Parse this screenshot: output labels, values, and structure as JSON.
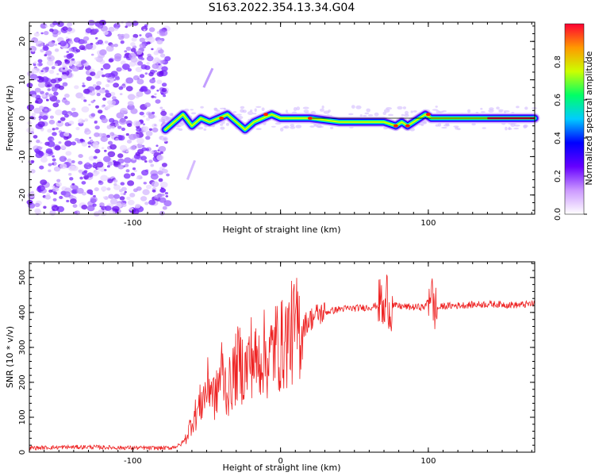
{
  "figure": {
    "title": "S163.2022.354.13.34.G04"
  },
  "chart_data": [
    {
      "type": "heatmap",
      "xlabel": "Height of straight line (km)",
      "ylabel": "Frequency (Hz)",
      "xlim": [
        -170,
        172
      ],
      "ylim": [
        -25,
        25
      ],
      "xticks": [
        -100,
        0,
        100
      ],
      "xtick_labels": [
        "-100",
        "",
        "100"
      ],
      "yticks": [
        -20,
        -10,
        0,
        10,
        20
      ],
      "colorbar": {
        "label": "Normalized spectral amplitude",
        "range": [
          0.0,
          1.0
        ],
        "ticks": [
          0.0,
          0.2,
          0.4,
          0.6,
          0.8
        ],
        "tick_labels": [
          "0.0",
          "0.2",
          "0.4",
          "0.6",
          "0.8"
        ],
        "colors": [
          "#ffffff",
          "#cc99ff",
          "#6600ff",
          "#0000ff",
          "#00ccff",
          "#00ff66",
          "#ccff00",
          "#ff9900",
          "#ff0033"
        ]
      },
      "ridge": {
        "description_points_x": [
          -78,
          -72,
          -66,
          -60,
          -54,
          -48,
          -42,
          -36,
          -30,
          -24,
          -18,
          -12,
          -6,
          0,
          20,
          40,
          60,
          70,
          78,
          82,
          86,
          90,
          94,
          98,
          102,
          120,
          140,
          172
        ],
        "description_points_y": [
          -3,
          -1,
          1,
          -2,
          0,
          -1,
          0,
          1,
          -1,
          -3,
          -1,
          0,
          1,
          0,
          0,
          -1,
          -1,
          -1,
          -2,
          -1,
          -2,
          -1,
          0,
          1,
          0,
          0,
          0,
          0
        ]
      }
    },
    {
      "type": "line",
      "xlabel": "Height of straight line (km)",
      "ylabel": "SNR (10 * v/v)",
      "xlim": [
        -170,
        172
      ],
      "ylim": [
        0,
        545
      ],
      "xticks": [
        -100,
        0,
        100
      ],
      "xtick_labels": [
        "-100",
        "0",
        "100"
      ],
      "yticks": [
        0,
        100,
        200,
        300,
        400,
        500
      ],
      "series": [
        {
          "color": "#ee2222",
          "x": [
            -170,
            -150,
            -130,
            -110,
            -90,
            -75,
            -68,
            -64,
            -60,
            -56,
            -52,
            -48,
            -44,
            -40,
            -36,
            -32,
            -28,
            -24,
            -20,
            -16,
            -12,
            -8,
            -4,
            0,
            5,
            10,
            15,
            20,
            25,
            30,
            40,
            50,
            60,
            66,
            68,
            70,
            72,
            74,
            76,
            80,
            90,
            98,
            100,
            102,
            103,
            105,
            110,
            120,
            130,
            140,
            150,
            160,
            172
          ],
          "y": [
            12,
            14,
            15,
            13,
            12,
            12,
            20,
            40,
            90,
            120,
            160,
            200,
            150,
            240,
            170,
            220,
            260,
            230,
            280,
            250,
            290,
            260,
            310,
            300,
            330,
            350,
            360,
            380,
            395,
            400,
            410,
            412,
            415,
            420,
            440,
            380,
            460,
            400,
            420,
            418,
            415,
            416,
            440,
            480,
            420,
            410,
            418,
            420,
            422,
            424,
            423,
            421,
            425
          ]
        }
      ]
    }
  ]
}
